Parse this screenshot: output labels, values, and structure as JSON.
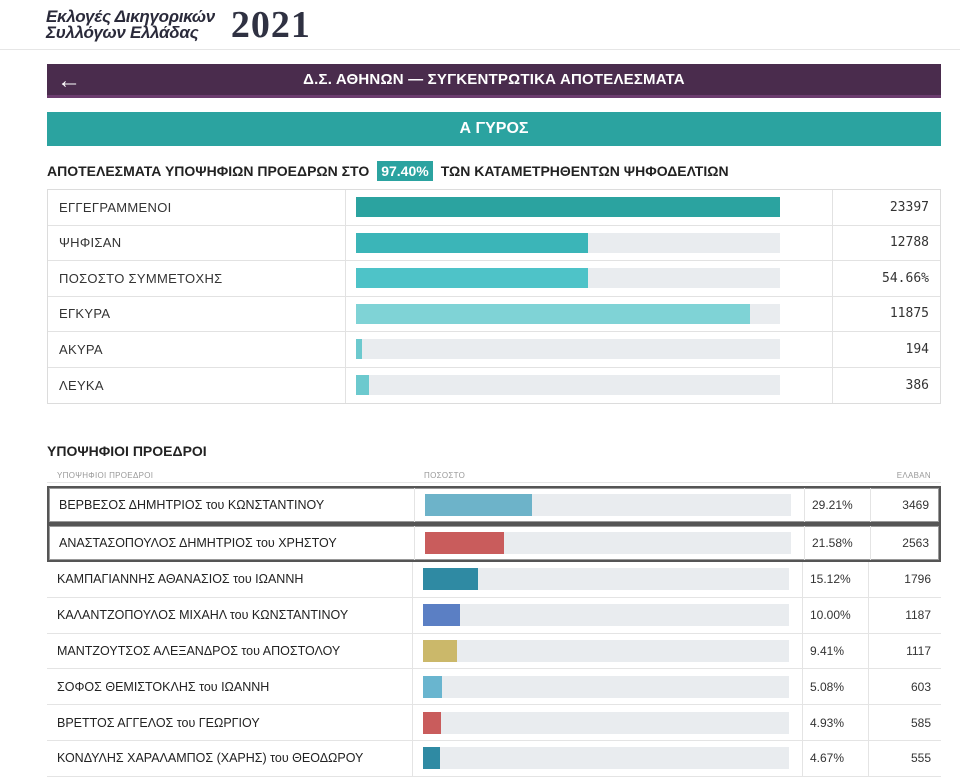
{
  "header": {
    "logo_line1": "Εκλογές Δικηγορικών",
    "logo_line2": "Συλλόγων Ελλάδας",
    "year": "2021"
  },
  "nav": {
    "back_icon": "←",
    "title": "Δ.Σ. ΑΘΗΝΩΝ — ΣΥΓΚΕΝΤΡΩΤΙΚΑ ΑΠΟΤΕΛΕΣΜΑΤΑ"
  },
  "round": {
    "title": "Α ΓΥΡΟΣ"
  },
  "summary": {
    "title_prefix": "ΑΠΟΤΕΛΕΣΜΑΤΑ ΥΠΟΨΗΦΙΩΝ ΠΡΟΕΔΡΩΝ ΣΤΟ",
    "percent": "97.40%",
    "title_suffix": "ΤΩΝ ΚΑΤΑΜΕΤΡΗΘΕΝΤΩΝ ΨΗΦΟΔΕΛΤΙΩΝ"
  },
  "stats": [
    {
      "label": "ΕΓΓΕΓΡΑΜΜΕΝΟΙ",
      "value": "23397",
      "fill_fraction": 1.0,
      "color": "#2ba3a0"
    },
    {
      "label": "ΨΗΦΙΣΑΝ",
      "value": "12788",
      "fill_fraction": 0.5466,
      "color": "#3bb5b8"
    },
    {
      "label": "ΠΟΣΟΣΤΟ ΣΥΜΜΕΤΟΧΗΣ",
      "value": "54.66%",
      "fill_fraction": 0.5466,
      "color": "#4ec3c8"
    },
    {
      "label": "ΕΓΚΥΡΑ",
      "value": "11875",
      "fill_fraction": 0.9286,
      "color": "#7fd3d6"
    },
    {
      "label": "ΑΚΥΡΑ",
      "value": "194",
      "fill_fraction": 0.0152,
      "color": "#6cc9ce"
    },
    {
      "label": "ΛΕΥΚΑ",
      "value": "386",
      "fill_fraction": 0.0302,
      "color": "#6cc9ce"
    }
  ],
  "candidates": {
    "title": "ΥΠΟΨΗΦΙΟΙ ΠΡΟΕΔΡΟΙ",
    "header_name": "ΥΠΟΨΗΦΙΟΙ ΠΡΟΕΔΡΟΙ",
    "header_pct": "ΠΟΣΟΣΤΟ",
    "header_votes": "ΕΛΑΒΑΝ",
    "rows": [
      {
        "name": "ΒΕΡΒΕΣΟΣ ΔΗΜΗΤΡΙΟΣ του ΚΩΝΣΤΑΝΤΙΝΟΥ",
        "pct": "29.21%",
        "votes": "3469",
        "fill_fraction": 0.2921,
        "color": "#6db3c9",
        "highlight": true
      },
      {
        "name": "ΑΝΑΣΤΑΣΟΠΟΥΛΟΣ ΔΗΜΗΤΡΙΟΣ του ΧΡΗΣΤΟΥ",
        "pct": "21.58%",
        "votes": "2563",
        "fill_fraction": 0.2158,
        "color": "#c95c5c",
        "highlight": true
      },
      {
        "name": "ΚΑΜΠΑΓΙΑΝΝΗΣ ΑΘΑΝΑΣΙΟΣ του ΙΩΑΝΝΗ",
        "pct": "15.12%",
        "votes": "1796",
        "fill_fraction": 0.1512,
        "color": "#2f8aa3",
        "highlight": false
      },
      {
        "name": "ΚΑΛΑΝΤΖΟΠΟΥΛΟΣ ΜΙΧΑΗΛ του ΚΩΝΣΤΑΝΤΙΝΟΥ",
        "pct": "10.00%",
        "votes": "1187",
        "fill_fraction": 0.1,
        "color": "#5b7fc4",
        "highlight": false
      },
      {
        "name": "ΜΑΝΤΖΟΥΤΣΟΣ ΑΛΕΞΑΝΔΡΟΣ του ΑΠΟΣΤΟΛΟΥ",
        "pct": "9.41%",
        "votes": "1117",
        "fill_fraction": 0.0941,
        "color": "#cbb86a",
        "highlight": false
      },
      {
        "name": "ΣΟΦΟΣ ΘΕΜΙΣΤΟΚΛΗΣ του ΙΩΑΝΝΗ",
        "pct": "5.08%",
        "votes": "603",
        "fill_fraction": 0.0508,
        "color": "#69b5cf",
        "highlight": false
      },
      {
        "name": "ΒΡΕΤΤΟΣ ΑΓΓΕΛΟΣ του ΓΕΩΡΓΙΟΥ",
        "pct": "4.93%",
        "votes": "585",
        "fill_fraction": 0.0493,
        "color": "#c95c5c",
        "highlight": false
      },
      {
        "name": "ΚΟΝΔΥΛΗΣ ΧΑΡΑΛΑΜΠΟΣ (ΧΑΡΗΣ) του ΘΕΟΔΩΡΟΥ",
        "pct": "4.67%",
        "votes": "555",
        "fill_fraction": 0.0467,
        "color": "#2f8aa3",
        "highlight": false
      }
    ]
  }
}
